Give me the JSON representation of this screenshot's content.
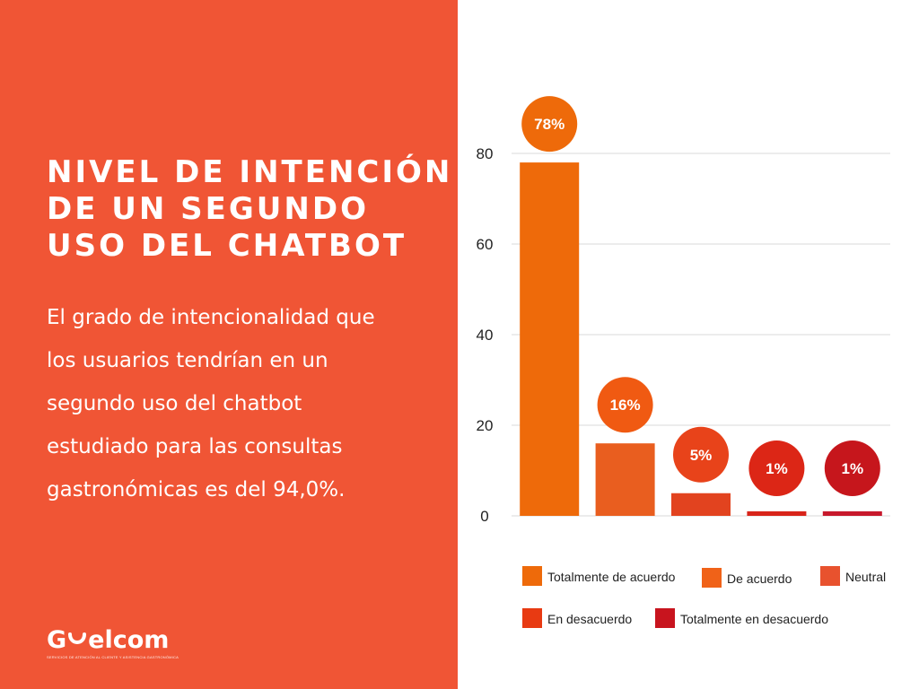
{
  "heading": {
    "lines": [
      "NIVEL DE INTENCIÓN",
      "DE UN SEGUNDO",
      "USO DEL CHATBOT"
    ]
  },
  "description": {
    "lines": [
      "El grado de intencionalidad que",
      "los usuarios tendrían en un",
      "segundo uso del chatbot",
      "estudiado para las consultas",
      "gastronómicas es del 94,0%."
    ]
  },
  "logo": {
    "prefix": "G",
    "suffix": "elcom",
    "tagline": "SERVICIOS DE ATENCIÓN AL CLIENTE Y ASISTENCIA GASTRONÓMICA"
  },
  "colors": {
    "panel": "#f05535",
    "grid": "#d9d9d9"
  },
  "chart_data": {
    "type": "bar",
    "categories": [
      "Totalmente de acuerdo",
      "De acuerdo",
      "Neutral",
      "En desacuerdo",
      "Totalmente en desacuerdo"
    ],
    "values": [
      78,
      16,
      5,
      1,
      1
    ],
    "data_labels": [
      "78%",
      "16%",
      "5%",
      "1%",
      "1%"
    ],
    "bar_colors": [
      "#ee6a0a",
      "#e95e1f",
      "#e2431f",
      "#d8241a",
      "#c7192c"
    ],
    "bubble_colors": [
      "#ee6a0a",
      "#f05a12",
      "#e8431a",
      "#dc2616",
      "#c6161c"
    ],
    "ylim": [
      0,
      80
    ],
    "yticks": [
      0,
      20,
      40,
      60,
      80
    ],
    "grid": true,
    "legend_position": "bottom",
    "legend_entries": [
      {
        "label": "Totalmente de acuerdo",
        "color": "#ee6a0a"
      },
      {
        "label": "De acuerdo",
        "color": "#f06218"
      },
      {
        "label": "Neutral",
        "color": "#e8522e"
      },
      {
        "label": "En desacuerdo",
        "color": "#e83a12"
      },
      {
        "label": "Totalmente en desacuerdo",
        "color": "#c8141e"
      }
    ]
  }
}
